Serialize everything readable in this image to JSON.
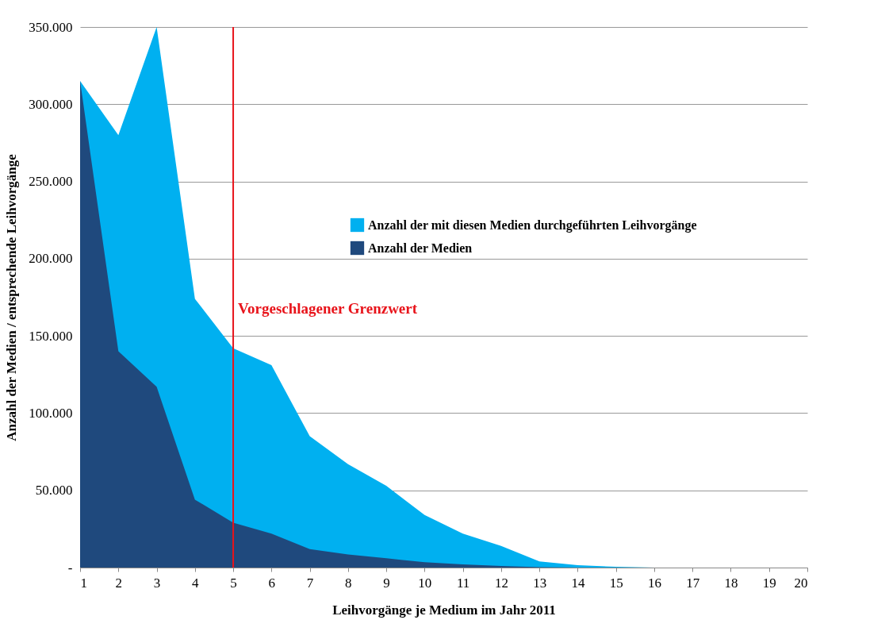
{
  "chart_data": {
    "type": "area",
    "xlabel": "Leihvorgänge je Medium im Jahr 2011",
    "ylabel": "Anzahl der Medien / entsprechende Leihvorgänge",
    "x": [
      1,
      2,
      3,
      4,
      5,
      6,
      7,
      8,
      9,
      10,
      11,
      12,
      13,
      14,
      15,
      16,
      17,
      18,
      19,
      20
    ],
    "series": [
      {
        "name": "Anzahl der mit diesen Medien durchgeführten Leihvorgänge",
        "color": "#00b0f0",
        "values": [
          315000,
          280000,
          350000,
          174000,
          142000,
          131000,
          85000,
          67000,
          53000,
          34000,
          22000,
          14000,
          4000,
          1500,
          500,
          0,
          0,
          0,
          0,
          0
        ]
      },
      {
        "name": "Anzahl der Medien",
        "color": "#1f497d",
        "values": [
          315000,
          140000,
          117000,
          44000,
          29000,
          22000,
          12000,
          8500,
          6000,
          3500,
          2000,
          1000,
          300,
          0,
          0,
          0,
          0,
          0,
          0,
          0
        ]
      }
    ],
    "xlim": [
      1,
      20
    ],
    "xticks": [
      1,
      2,
      3,
      4,
      5,
      6,
      7,
      8,
      9,
      10,
      11,
      12,
      13,
      14,
      15,
      16,
      17,
      18,
      19,
      20
    ],
    "ylim": [
      0,
      350000
    ],
    "yticks": [
      {
        "value": 0,
        "label": "-"
      },
      {
        "value": 50000,
        "label": "50.000"
      },
      {
        "value": 100000,
        "label": "100.000"
      },
      {
        "value": 150000,
        "label": "150.000"
      },
      {
        "value": 200000,
        "label": "200.000"
      },
      {
        "value": 250000,
        "label": "250.000"
      },
      {
        "value": 300000,
        "label": "300.000"
      },
      {
        "value": 350000,
        "label": "350.000"
      }
    ],
    "ref_lines": [
      {
        "axis": "x",
        "value": 5,
        "label": "Vorgeschlagener Grenzwert",
        "color": "#e8141b"
      }
    ],
    "grid": "y",
    "legend": "right"
  }
}
